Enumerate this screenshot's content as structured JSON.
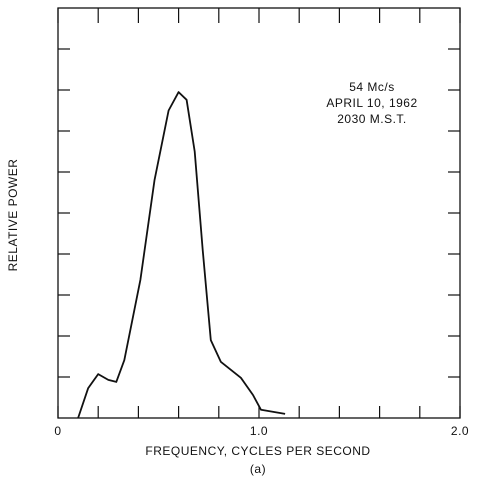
{
  "chart_data": {
    "type": "line",
    "xlabel": "FREQUENCY, CYCLES PER SECOND",
    "caption": "(a)",
    "ylabel": "RELATIVE POWER",
    "annotations": [
      "54 Mc/s",
      "APRIL 10, 1962",
      "2030 M.S.T."
    ],
    "xlim": [
      0,
      2
    ],
    "xticks": [
      0,
      {
        "value": 1,
        "label": "1.0"
      },
      {
        "value": 2,
        "label": "2.0"
      }
    ],
    "xminor": [
      0.2,
      0.4,
      0.6,
      0.8,
      1.2,
      1.4,
      1.6,
      1.8
    ],
    "ylim": [
      0,
      10
    ],
    "yticks": [
      1,
      2,
      3,
      4,
      5,
      6,
      7,
      8,
      9
    ],
    "color": "#111111",
    "x": [
      0.1,
      0.15,
      0.2,
      0.25,
      0.29,
      0.33,
      0.41,
      0.48,
      0.55,
      0.6,
      0.64,
      0.68,
      0.72,
      0.76,
      0.81,
      0.91,
      0.97,
      1.01,
      1.13
    ],
    "values": [
      0,
      0.73,
      1.07,
      0.93,
      0.88,
      1.41,
      3.37,
      5.8,
      7.5,
      7.95,
      7.76,
      6.5,
      4.1,
      1.9,
      1.37,
      0.98,
      0.56,
      0.2,
      0.1
    ]
  }
}
